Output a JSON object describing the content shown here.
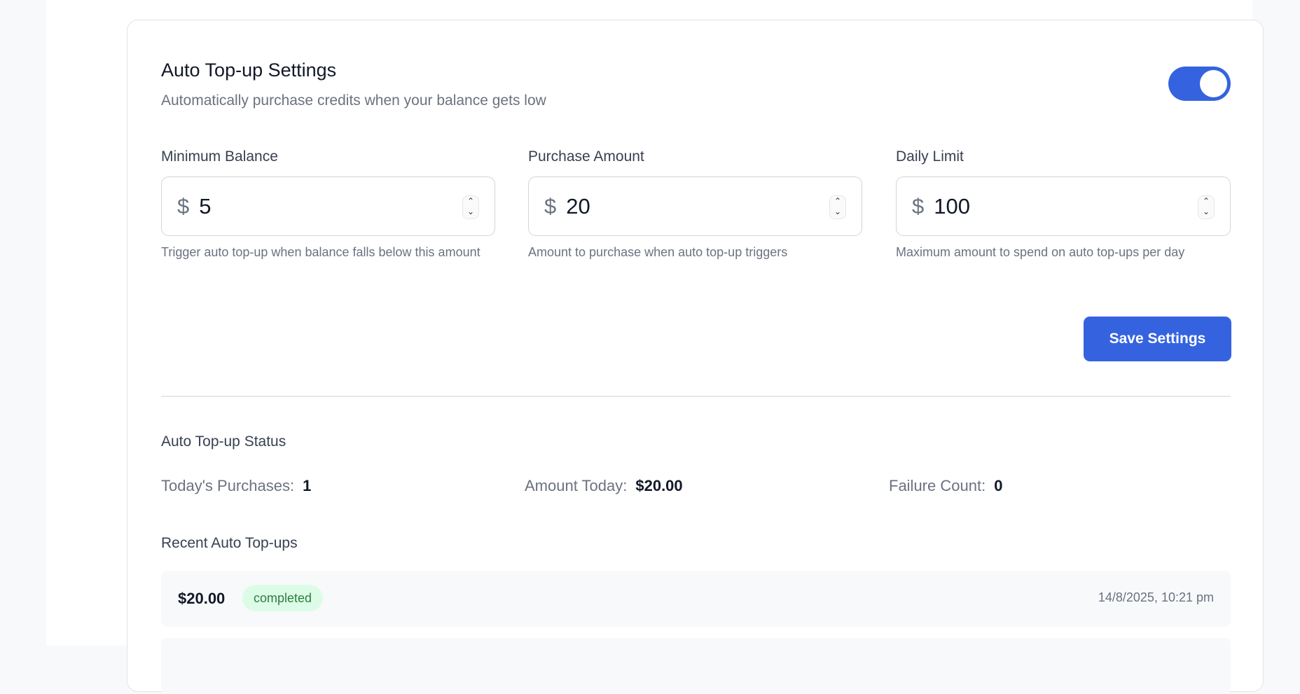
{
  "header": {
    "title": "Auto Top-up Settings",
    "subtitle": "Automatically purchase credits when your balance gets low",
    "enabled": true
  },
  "fields": [
    {
      "label": "Minimum Balance",
      "currency": "$",
      "value": "5",
      "help": "Trigger auto top-up when balance falls below this amount"
    },
    {
      "label": "Purchase Amount",
      "currency": "$",
      "value": "20",
      "help": "Amount to purchase when auto top-up triggers"
    },
    {
      "label": "Daily Limit",
      "currency": "$",
      "value": "100",
      "help": "Maximum amount to spend on auto top-ups per day"
    }
  ],
  "save_label": "Save Settings",
  "status": {
    "heading": "Auto Top-up Status",
    "items": [
      {
        "label": "Today's Purchases:",
        "value": "1"
      },
      {
        "label": "Amount Today:",
        "value": "$20.00"
      },
      {
        "label": "Failure Count:",
        "value": "0"
      }
    ]
  },
  "recent": {
    "heading": "Recent Auto Top-ups",
    "items": [
      {
        "amount": "$20.00",
        "status": "completed",
        "time": "14/8/2025, 10:21 pm"
      }
    ]
  },
  "colors": {
    "accent": "#3563e0",
    "success_bg": "#dcfce7",
    "success_text": "#2f7d3f"
  }
}
